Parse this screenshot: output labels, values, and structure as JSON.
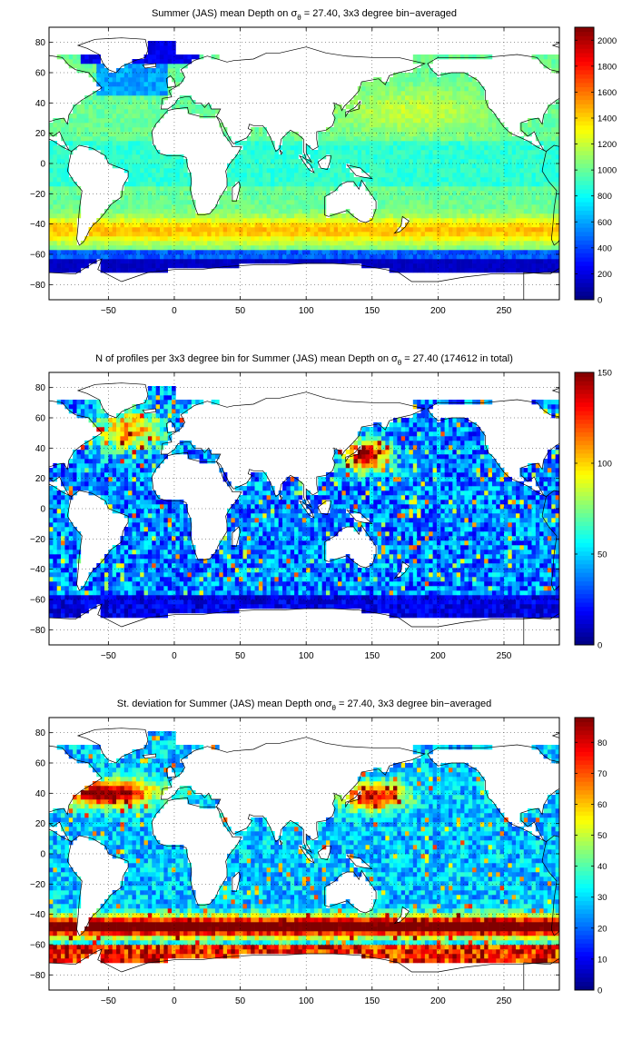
{
  "chart_data": [
    {
      "type": "heatmap",
      "title": "Summer (JAS) mean Depth on σθ = 27.40, 3x3 degree bin−averaged",
      "title_parts": {
        "pre": "Summer (JAS) mean Depth on ",
        "sigma": "σ",
        "sub": "θ",
        "post": " = 27.40, 3x3 degree bin−averaged"
      },
      "xlim": [
        -95,
        292
      ],
      "ylim": [
        -90,
        90
      ],
      "x_ticks": [
        "−50",
        "0",
        "50",
        "100",
        "150",
        "200",
        "250"
      ],
      "x_tick_values": [
        -50,
        0,
        50,
        100,
        150,
        200,
        250
      ],
      "y_ticks": [
        "80",
        "60",
        "40",
        "20",
        "0",
        "−20",
        "−40",
        "−60",
        "−80"
      ],
      "y_tick_values": [
        80,
        60,
        40,
        20,
        0,
        -20,
        -40,
        -60,
        -80
      ],
      "grid": true,
      "colorbar": {
        "min": 0,
        "max": 2100,
        "ticks": [
          "0",
          "200",
          "400",
          "600",
          "800",
          "1000",
          "1200",
          "1400",
          "1600",
          "1800",
          "2000"
        ],
        "tick_values": [
          0,
          200,
          400,
          600,
          800,
          1000,
          1200,
          1400,
          1600,
          1800,
          2000
        ],
        "colormap": "jet"
      },
      "description": "Depth mostly ~1000 m across oceans, increasing to ~1300–1600 m near 40–50°S, dropping to <200 m south of 60°S and in high-latitude North Atlantic"
    },
    {
      "type": "heatmap",
      "title": "N of profiles per 3x3 degree bin for Summer (JAS) mean Depth on σθ = 27.40 (174612 in total)",
      "title_parts": {
        "pre": "N of profiles per 3x3 degree bin for Summer (JAS) mean Depth on ",
        "sigma": "σ",
        "sub": "θ",
        "post": " = 27.40 (174612 in total)"
      },
      "xlim": [
        -95,
        292
      ],
      "ylim": [
        -90,
        90
      ],
      "x_ticks": [
        "−50",
        "0",
        "50",
        "100",
        "150",
        "200",
        "250"
      ],
      "x_tick_values": [
        -50,
        0,
        50,
        100,
        150,
        200,
        250
      ],
      "y_ticks": [
        "80",
        "60",
        "40",
        "20",
        "0",
        "−20",
        "−40",
        "−60",
        "−80"
      ],
      "y_tick_values": [
        80,
        60,
        40,
        20,
        0,
        -20,
        -40,
        -60,
        -80
      ],
      "grid": true,
      "colorbar": {
        "min": 0,
        "max": 150,
        "ticks": [
          "0",
          "50",
          "100",
          "150"
        ],
        "tick_values": [
          0,
          50,
          100,
          150
        ],
        "colormap": "jet"
      },
      "description": "Profile counts mostly 10–60, highest (>100) in North Pacific Kuroshio region and North Atlantic"
    },
    {
      "type": "heatmap",
      "title": "St. deviation for Summer (JAS) mean Depth onσθ = 27.40, 3x3 degree bin−averaged",
      "title_parts": {
        "pre": "St. deviation for Summer (JAS) mean Depth on",
        "sigma": "σ",
        "sub": "θ",
        "post": " = 27.40, 3x3 degree bin−averaged"
      },
      "xlim": [
        -95,
        292
      ],
      "ylim": [
        -90,
        90
      ],
      "x_ticks": [
        "−50",
        "0",
        "50",
        "100",
        "150",
        "200",
        "250"
      ],
      "x_tick_values": [
        -50,
        0,
        50,
        100,
        150,
        200,
        250
      ],
      "y_ticks": [
        "80",
        "60",
        "40",
        "20",
        "0",
        "−20",
        "−40",
        "−60",
        "−80"
      ],
      "y_tick_values": [
        80,
        60,
        40,
        20,
        0,
        -20,
        -40,
        -60,
        -80
      ],
      "grid": true,
      "colorbar": {
        "min": 0,
        "max": 88,
        "ticks": [
          "0",
          "10",
          "20",
          "30",
          "40",
          "50",
          "60",
          "70",
          "80"
        ],
        "tick_values": [
          0,
          10,
          20,
          30,
          40,
          50,
          60,
          70,
          80
        ],
        "colormap": "jet"
      },
      "description": "Standard deviation mostly 15–35, exceeding 80 in the Antarctic Circumpolar Current band (45–60°S), Gulf Stream and Kuroshio"
    }
  ]
}
